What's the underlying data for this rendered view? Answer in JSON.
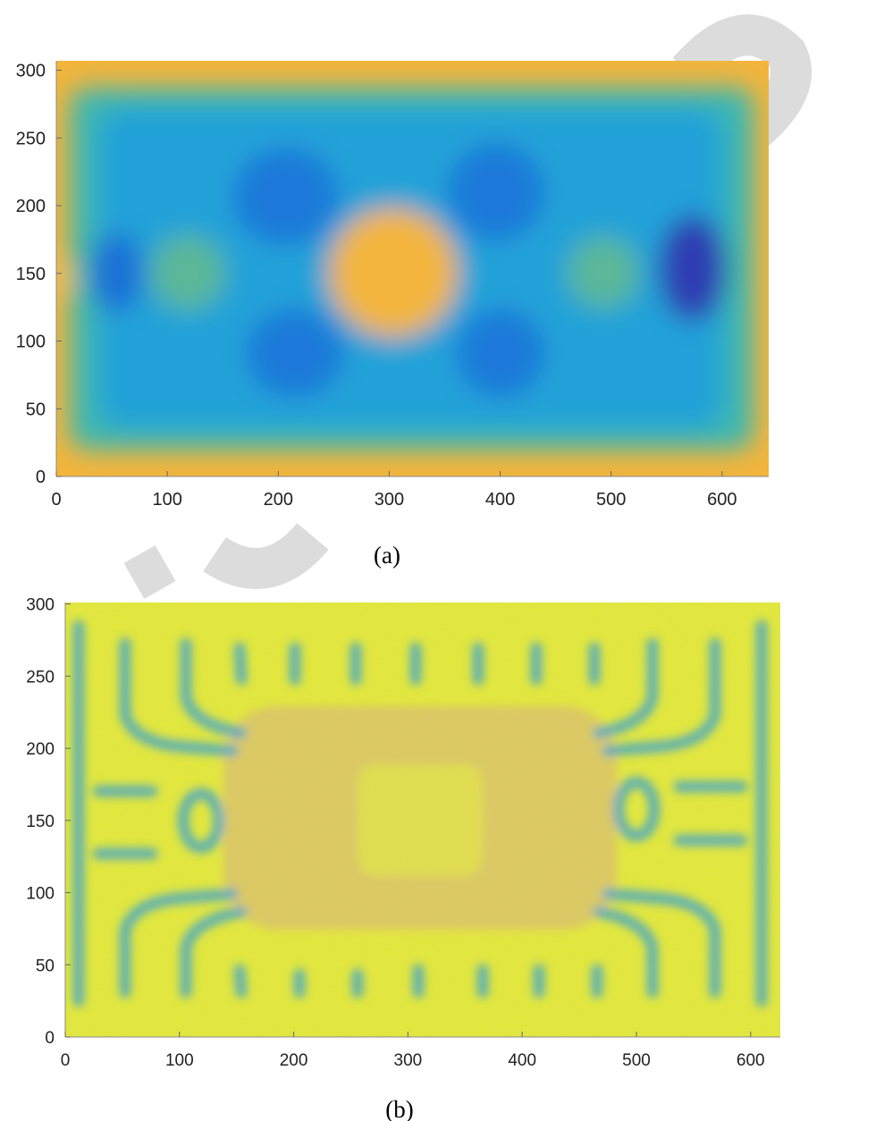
{
  "chart_data": [
    {
      "type": "heatmap",
      "caption": "(a)",
      "xlim": [
        0,
        642
      ],
      "ylim": [
        0,
        307
      ],
      "xticks": [
        0,
        100,
        200,
        300,
        400,
        500,
        600
      ],
      "yticks": [
        0,
        50,
        100,
        150,
        200,
        250,
        300
      ]
    },
    {
      "type": "heatmap",
      "caption": "(b)",
      "xlim": [
        0,
        626
      ],
      "ylim": [
        0,
        301
      ],
      "xticks": [
        0,
        100,
        200,
        300,
        400,
        500,
        600
      ],
      "yticks": [
        0,
        50,
        100,
        150,
        200,
        250,
        300
      ]
    }
  ]
}
